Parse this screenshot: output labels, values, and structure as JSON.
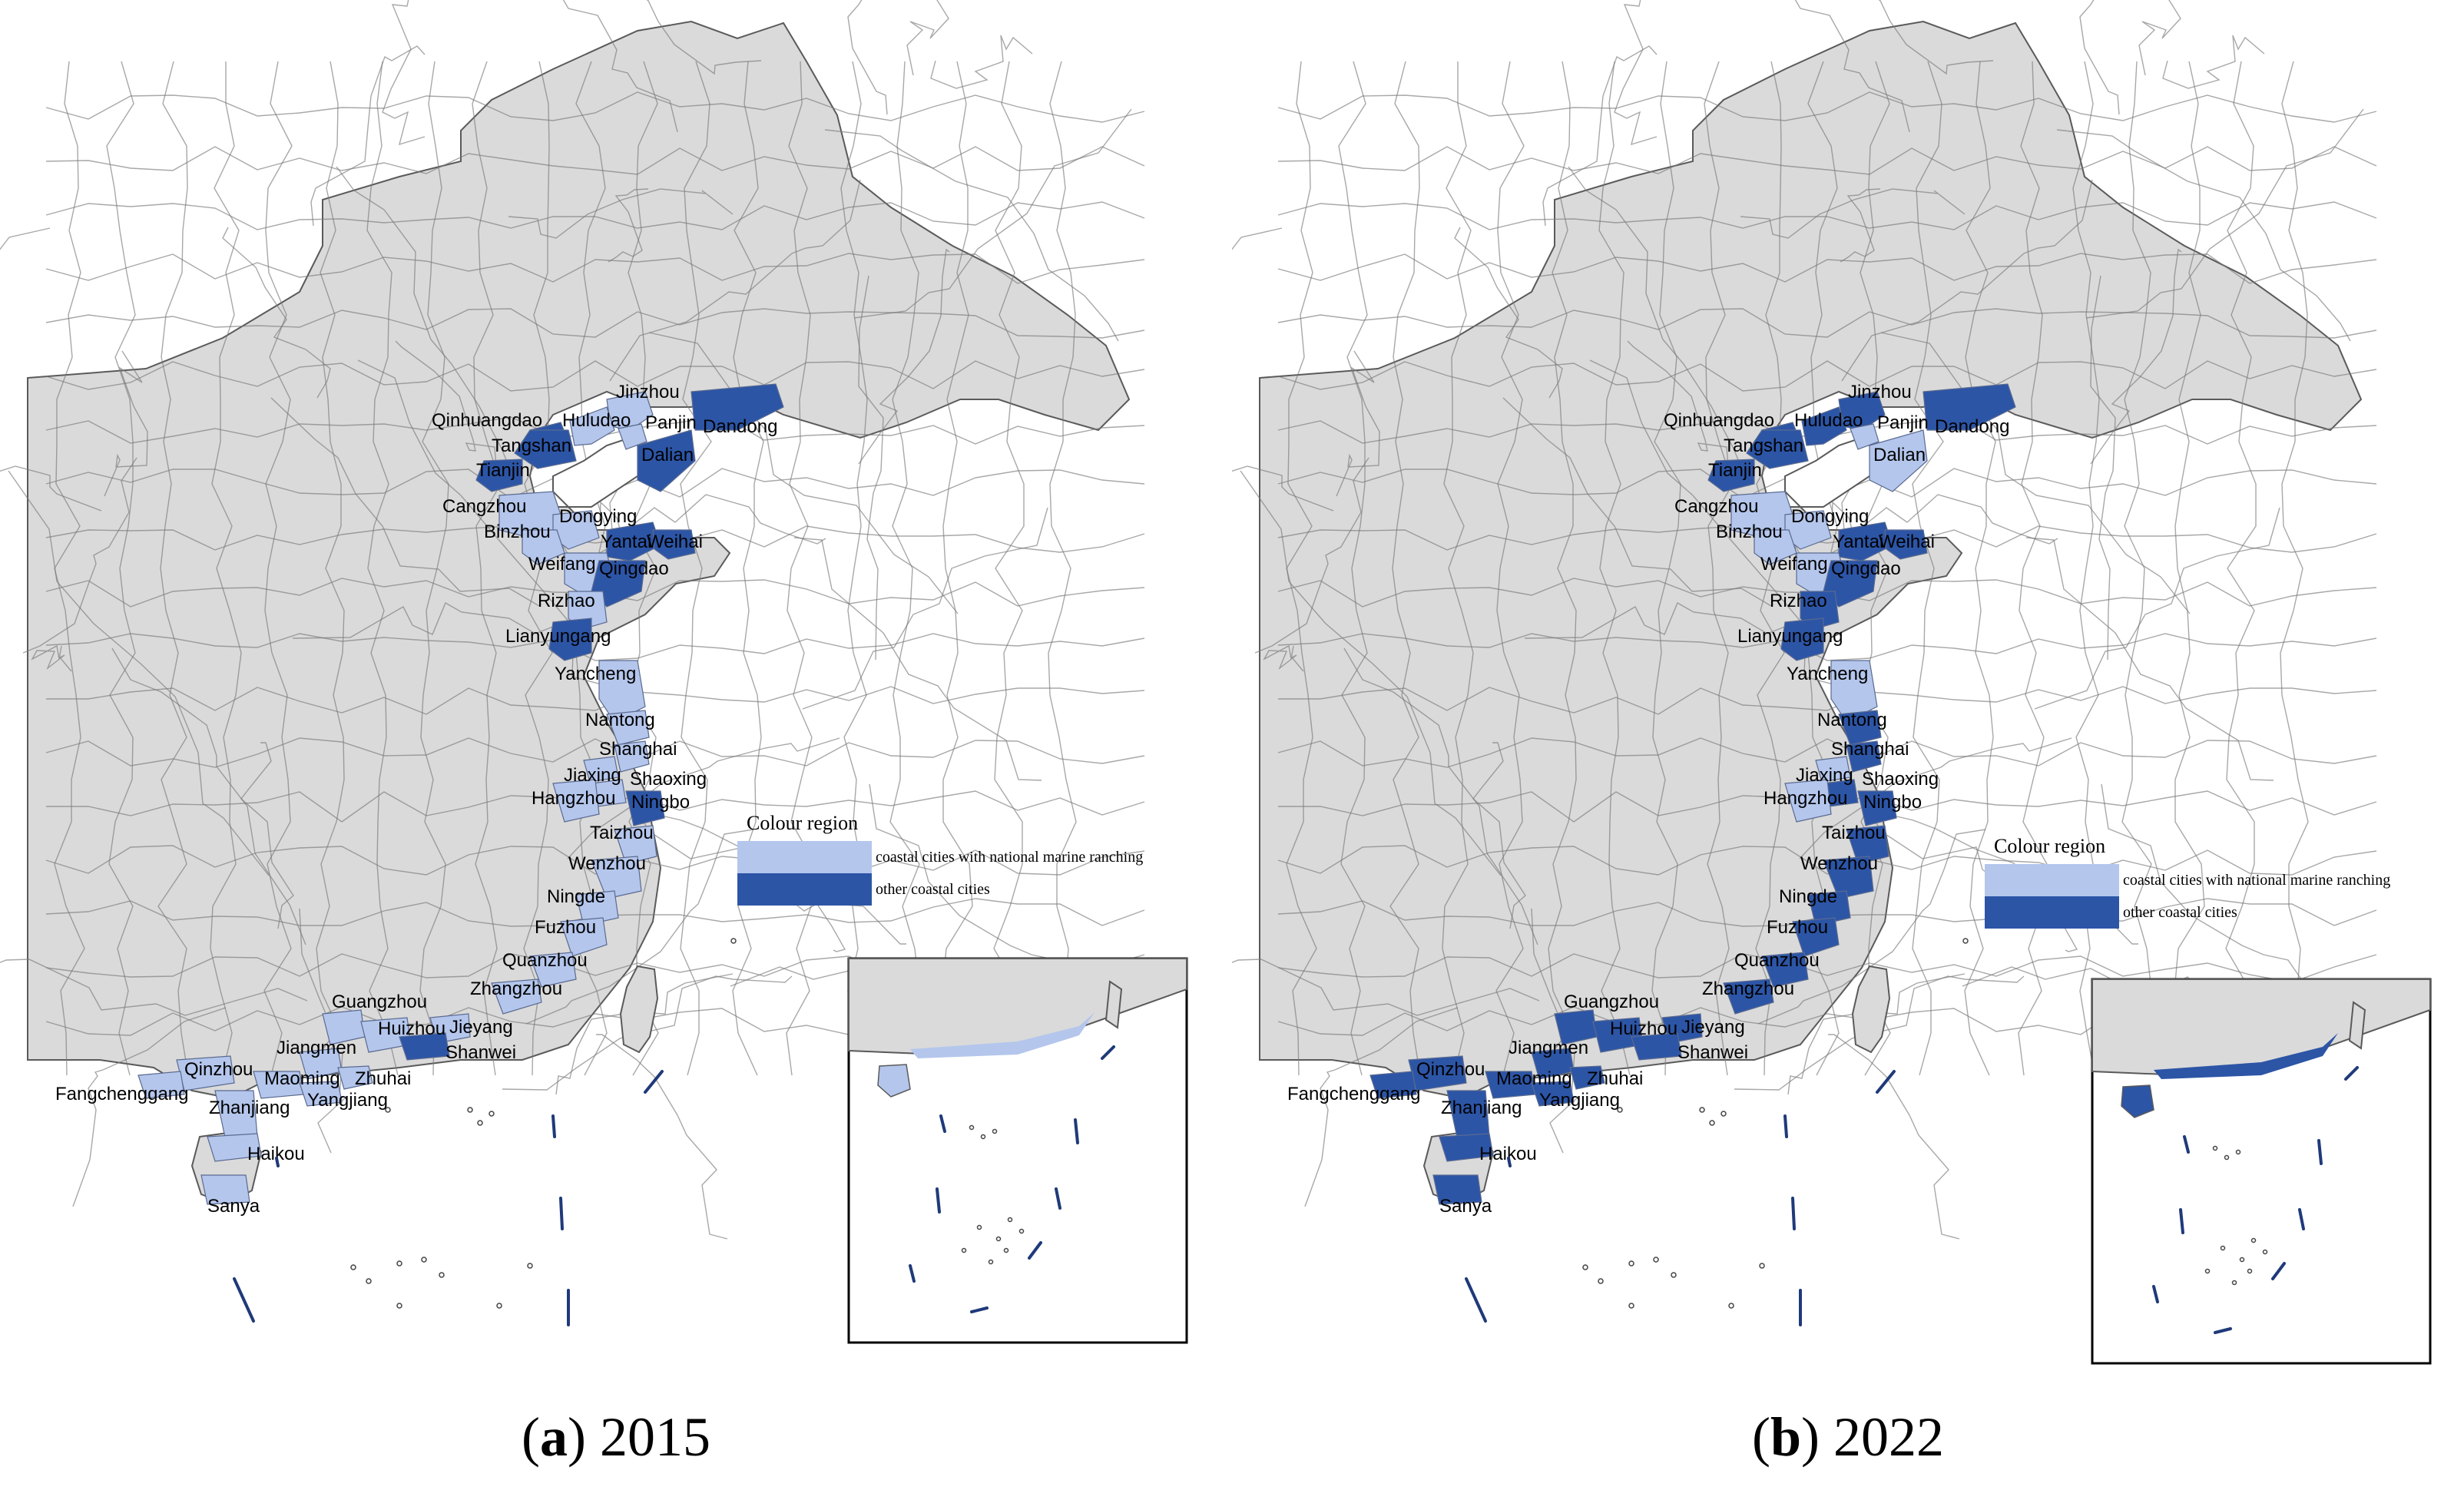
{
  "colors": {
    "land": "#dadada",
    "marine_ranching": "#b4c6ec",
    "other_coastal": "#2c55a6",
    "dash_line": "#1f3a7a"
  },
  "legend": {
    "title": "Colour region",
    "items": [
      {
        "label": "coastal cities with national marine ranching",
        "color": "#b4c6ec"
      },
      {
        "label": "other coastal cities",
        "color": "#2c55a6"
      }
    ]
  },
  "panels": [
    {
      "letter": "a",
      "year": "2015",
      "cities": [
        {
          "name": "Jinzhou",
          "category": "marine_ranching"
        },
        {
          "name": "Qinhuangdao",
          "category": "other"
        },
        {
          "name": "Huludao",
          "category": "marine_ranching"
        },
        {
          "name": "Panjin",
          "category": "marine_ranching"
        },
        {
          "name": "Dandong",
          "category": "other"
        },
        {
          "name": "Tangshan",
          "category": "other"
        },
        {
          "name": "Dalian",
          "category": "other"
        },
        {
          "name": "Tianjin",
          "category": "other"
        },
        {
          "name": "Cangzhou",
          "category": "marine_ranching"
        },
        {
          "name": "Dongying",
          "category": "marine_ranching"
        },
        {
          "name": "Binzhou",
          "category": "marine_ranching"
        },
        {
          "name": "Yantai",
          "category": "other"
        },
        {
          "name": "Weihai",
          "category": "other"
        },
        {
          "name": "Weifang",
          "category": "marine_ranching"
        },
        {
          "name": "Qingdao",
          "category": "other"
        },
        {
          "name": "Rizhao",
          "category": "marine_ranching"
        },
        {
          "name": "Lianyungang",
          "category": "other"
        },
        {
          "name": "Yancheng",
          "category": "marine_ranching"
        },
        {
          "name": "Nantong",
          "category": "marine_ranching"
        },
        {
          "name": "Shanghai",
          "category": "marine_ranching"
        },
        {
          "name": "Jiaxing",
          "category": "marine_ranching"
        },
        {
          "name": "Shaoxing",
          "category": "marine_ranching"
        },
        {
          "name": "Hangzhou",
          "category": "marine_ranching"
        },
        {
          "name": "Ningbo",
          "category": "other"
        },
        {
          "name": "Taizhou",
          "category": "marine_ranching"
        },
        {
          "name": "Wenzhou",
          "category": "marine_ranching"
        },
        {
          "name": "Ningde",
          "category": "marine_ranching"
        },
        {
          "name": "Fuzhou",
          "category": "marine_ranching"
        },
        {
          "name": "Quanzhou",
          "category": "marine_ranching"
        },
        {
          "name": "Zhangzhou",
          "category": "marine_ranching"
        },
        {
          "name": "Guangzhou",
          "category": "marine_ranching"
        },
        {
          "name": "Huizhou",
          "category": "marine_ranching"
        },
        {
          "name": "Jieyang",
          "category": "marine_ranching"
        },
        {
          "name": "Shanwei",
          "category": "other"
        },
        {
          "name": "Jiangmen",
          "category": "marine_ranching"
        },
        {
          "name": "Qinzhou",
          "category": "marine_ranching"
        },
        {
          "name": "Maoming",
          "category": "marine_ranching"
        },
        {
          "name": "Zhuhai",
          "category": "marine_ranching"
        },
        {
          "name": "Fangchenggang",
          "category": "marine_ranching"
        },
        {
          "name": "Zhanjiang",
          "category": "marine_ranching"
        },
        {
          "name": "Yangjiang",
          "category": "marine_ranching"
        },
        {
          "name": "Haikou",
          "category": "marine_ranching"
        },
        {
          "name": "Sanya",
          "category": "marine_ranching"
        }
      ]
    },
    {
      "letter": "b",
      "year": "2022",
      "cities": [
        {
          "name": "Jinzhou",
          "category": "other"
        },
        {
          "name": "Qinhuangdao",
          "category": "other"
        },
        {
          "name": "Huludao",
          "category": "other"
        },
        {
          "name": "Panjin",
          "category": "marine_ranching"
        },
        {
          "name": "Dandong",
          "category": "other"
        },
        {
          "name": "Tangshan",
          "category": "other"
        },
        {
          "name": "Dalian",
          "category": "marine_ranching"
        },
        {
          "name": "Tianjin",
          "category": "other"
        },
        {
          "name": "Cangzhou",
          "category": "marine_ranching"
        },
        {
          "name": "Dongying",
          "category": "marine_ranching"
        },
        {
          "name": "Binzhou",
          "category": "marine_ranching"
        },
        {
          "name": "Yantai",
          "category": "other"
        },
        {
          "name": "Weihai",
          "category": "other"
        },
        {
          "name": "Weifang",
          "category": "marine_ranching"
        },
        {
          "name": "Qingdao",
          "category": "other"
        },
        {
          "name": "Rizhao",
          "category": "other"
        },
        {
          "name": "Lianyungang",
          "category": "other"
        },
        {
          "name": "Yancheng",
          "category": "marine_ranching"
        },
        {
          "name": "Nantong",
          "category": "other"
        },
        {
          "name": "Shanghai",
          "category": "other"
        },
        {
          "name": "Jiaxing",
          "category": "marine_ranching"
        },
        {
          "name": "Shaoxing",
          "category": "other"
        },
        {
          "name": "Hangzhou",
          "category": "marine_ranching"
        },
        {
          "name": "Ningbo",
          "category": "other"
        },
        {
          "name": "Taizhou",
          "category": "other"
        },
        {
          "name": "Wenzhou",
          "category": "other"
        },
        {
          "name": "Ningde",
          "category": "other"
        },
        {
          "name": "Fuzhou",
          "category": "other"
        },
        {
          "name": "Quanzhou",
          "category": "other"
        },
        {
          "name": "Zhangzhou",
          "category": "other"
        },
        {
          "name": "Guangzhou",
          "category": "other"
        },
        {
          "name": "Huizhou",
          "category": "other"
        },
        {
          "name": "Jieyang",
          "category": "other"
        },
        {
          "name": "Shanwei",
          "category": "other"
        },
        {
          "name": "Jiangmen",
          "category": "other"
        },
        {
          "name": "Qinzhou",
          "category": "other"
        },
        {
          "name": "Maoming",
          "category": "other"
        },
        {
          "name": "Zhuhai",
          "category": "other"
        },
        {
          "name": "Fangchenggang",
          "category": "other"
        },
        {
          "name": "Zhanjiang",
          "category": "other"
        },
        {
          "name": "Yangjiang",
          "category": "other"
        },
        {
          "name": "Haikou",
          "category": "other"
        },
        {
          "name": "Sanya",
          "category": "other"
        }
      ]
    }
  ]
}
